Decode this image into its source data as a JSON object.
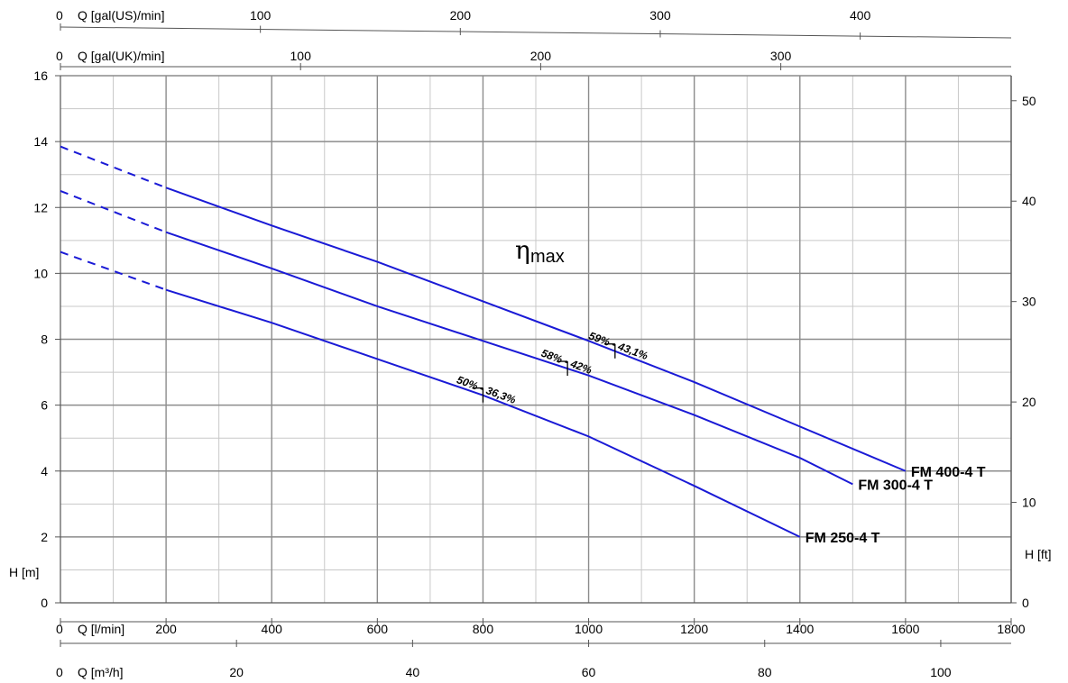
{
  "chart_data": {
    "type": "line",
    "title": "",
    "eta_symbol": "η",
    "eta_subscript": "max",
    "axes": {
      "x_lmin": {
        "label": "Q [l/min]",
        "ticks": [
          "0",
          "200",
          "400",
          "600",
          "800",
          "1000",
          "1200",
          "1400",
          "1600",
          "1800"
        ],
        "range": [
          0,
          1800
        ]
      },
      "x_m3h": {
        "label": "Q [m³/h]",
        "ticks": [
          "0",
          "20",
          "40",
          "60",
          "80",
          "100"
        ]
      },
      "x_galus": {
        "label": "Q [gal(US)/min]",
        "ticks": [
          "0",
          "100",
          "200",
          "300",
          "400"
        ]
      },
      "x_galuk": {
        "label": "Q [gal(UK)/min]",
        "ticks": [
          "0",
          "100",
          "200",
          "300"
        ]
      },
      "y_m": {
        "label": "H [m]",
        "ticks": [
          "0",
          "2",
          "4",
          "6",
          "8",
          "10",
          "12",
          "14",
          "16"
        ],
        "range": [
          0,
          16
        ]
      },
      "y_ft": {
        "label": "H [ft]",
        "ticks": [
          "0",
          "10",
          "20",
          "30",
          "40",
          "50"
        ]
      }
    },
    "grid": true,
    "series": [
      {
        "name": "FM 400-4 T",
        "color": "#1a1ad6",
        "dashed_x": [
          0,
          200
        ],
        "x": [
          0,
          200,
          400,
          600,
          800,
          1000,
          1200,
          1400,
          1600
        ],
        "y": [
          13.85,
          12.6,
          11.45,
          10.35,
          9.15,
          7.95,
          6.7,
          5.35,
          4.0
        ],
        "eff_label": "59% - 43,1%",
        "eff_x": 1050
      },
      {
        "name": "FM 300-4 T",
        "color": "#1a1ad6",
        "dashed_x": [
          0,
          200
        ],
        "x": [
          0,
          200,
          400,
          600,
          800,
          1000,
          1200,
          1400,
          1500
        ],
        "y": [
          12.5,
          11.25,
          10.15,
          9.0,
          7.95,
          6.9,
          5.7,
          4.4,
          3.6
        ],
        "eff_label": "58% - 42%",
        "eff_x": 960
      },
      {
        "name": "FM 250-4 T",
        "color": "#1a1ad6",
        "dashed_x": [
          0,
          200
        ],
        "x": [
          0,
          200,
          400,
          600,
          800,
          1000,
          1200,
          1400
        ],
        "y": [
          10.65,
          9.5,
          8.5,
          7.4,
          6.3,
          5.05,
          3.55,
          2.0
        ],
        "eff_label": "50% - 36,3%",
        "eff_x": 800
      }
    ]
  }
}
